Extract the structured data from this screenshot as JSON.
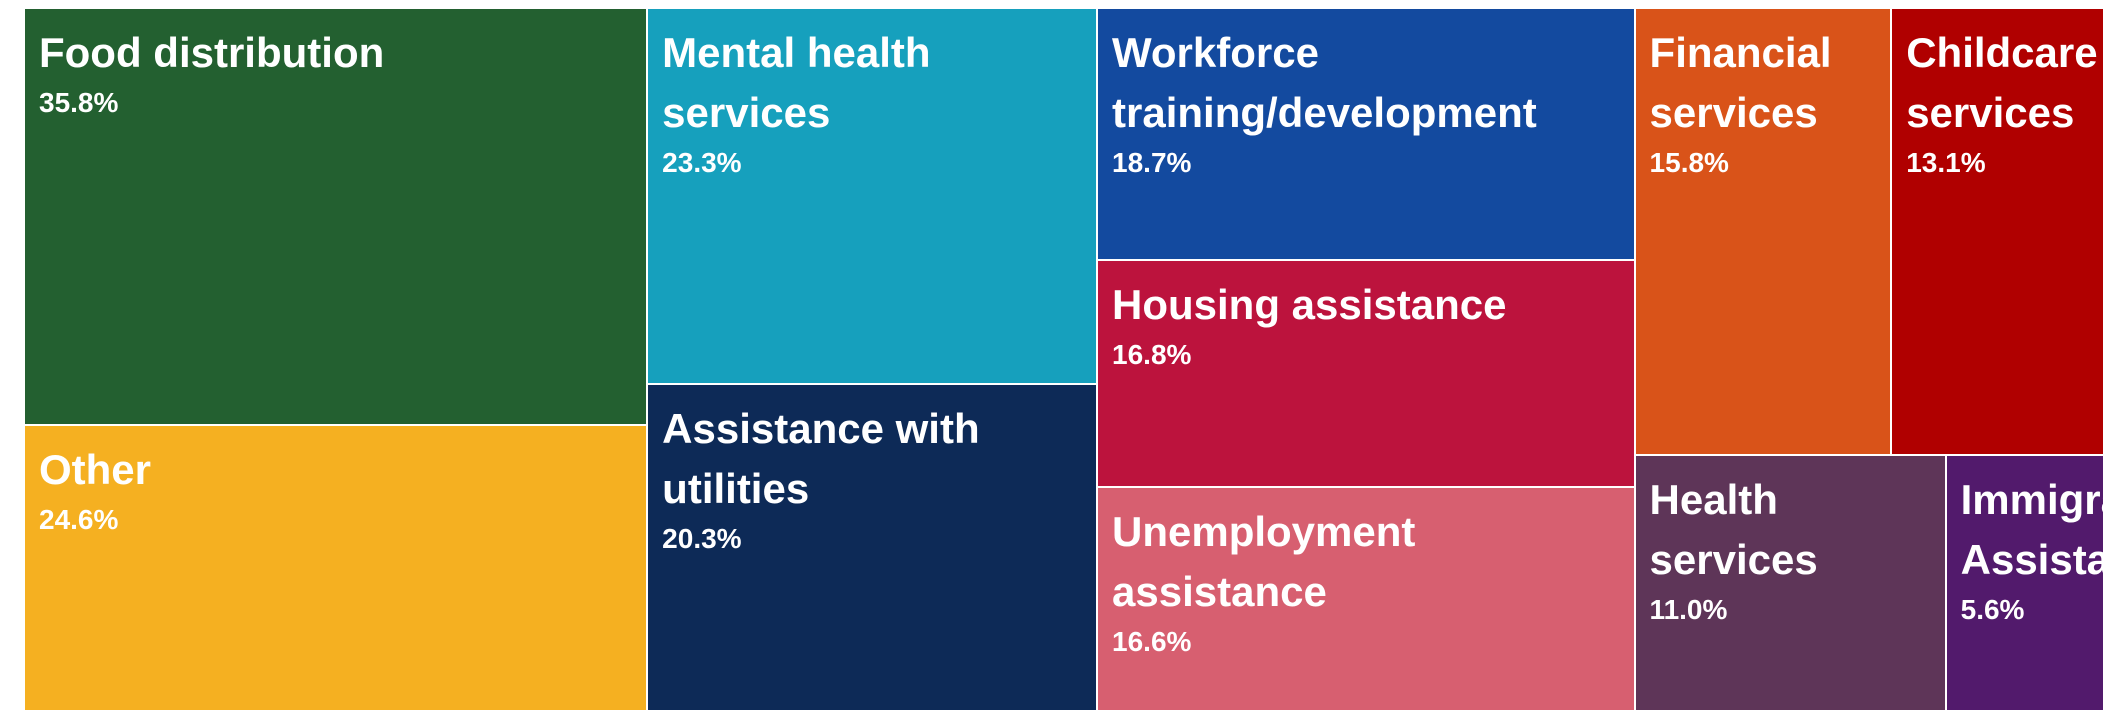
{
  "chart_data": {
    "type": "treemap",
    "categories": [
      "Food distribution",
      "Other",
      "Mental health services",
      "Assistance with utilities",
      "Workforce training/development",
      "Housing assistance",
      "Unemployment assistance",
      "Financial services",
      "Childcare services",
      "Health services",
      "Immigration Assistance"
    ],
    "values": [
      35.8,
      24.6,
      23.3,
      20.3,
      18.7,
      16.8,
      16.6,
      15.8,
      13.1,
      11.0,
      5.6
    ],
    "value_labels": [
      "35.8%",
      "24.6%",
      "23.3%",
      "20.3%",
      "18.7%",
      "16.8%",
      "16.6%",
      "15.8%",
      "13.1%",
      "11.0%",
      "5.6%"
    ],
    "colors": [
      "#236030",
      "#f5b021",
      "#16a0bd",
      "#0d2a57",
      "#134a9f",
      "#bc133d",
      "#d75f70",
      "#d95319",
      "#b00000",
      "#5e3558",
      "#521a6c"
    ]
  }
}
